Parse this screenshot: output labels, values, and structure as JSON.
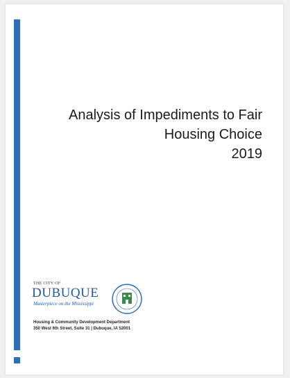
{
  "document": {
    "title": [
      "Analysis of Impediments to Fair",
      "Housing Choice"
    ],
    "year": "2019",
    "logo": {
      "prefix": "THE CITY OF",
      "name": "DUBUQUE",
      "tagline": "Masterpiece on the Mississippi"
    },
    "department": "Housing & Community Development Department",
    "address": "350 West 6th Street, Suite 31 | Dubuque, IA 52001"
  }
}
